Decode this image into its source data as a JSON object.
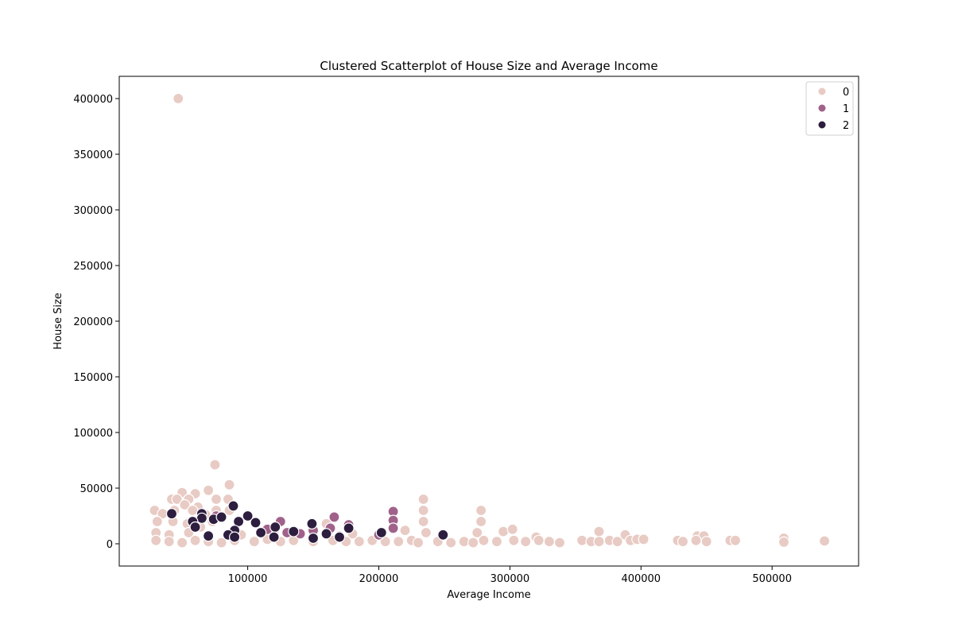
{
  "chart_data": {
    "type": "scatter",
    "title": "Clustered Scatterplot of House Size and Average Income",
    "xlabel": "Average Income",
    "ylabel": "House Size",
    "xlim": [
      2000,
      566000
    ],
    "ylim": [
      -20000,
      420000
    ],
    "xticks": [
      100000,
      200000,
      300000,
      400000,
      500000
    ],
    "yticks": [
      0,
      50000,
      100000,
      150000,
      200000,
      250000,
      300000,
      350000,
      400000
    ],
    "grid": false,
    "legend": {
      "placement": "top-right",
      "title": ""
    },
    "series": [
      {
        "name": "0",
        "color": "#e8cbc4",
        "points": [
          [
            47000,
            400000
          ],
          [
            75000,
            71000
          ],
          [
            86000,
            53000
          ],
          [
            70000,
            48000
          ],
          [
            50000,
            46000
          ],
          [
            60000,
            45000
          ],
          [
            42000,
            40000
          ],
          [
            46000,
            40000
          ],
          [
            55000,
            40000
          ],
          [
            76000,
            40000
          ],
          [
            85000,
            40000
          ],
          [
            234000,
            40000
          ],
          [
            52000,
            35000
          ],
          [
            62000,
            33000
          ],
          [
            29000,
            30000
          ],
          [
            44000,
            30000
          ],
          [
            58000,
            30000
          ],
          [
            76000,
            30000
          ],
          [
            86000,
            30000
          ],
          [
            234000,
            30000
          ],
          [
            278000,
            30000
          ],
          [
            35000,
            27000
          ],
          [
            68000,
            26000
          ],
          [
            31000,
            20000
          ],
          [
            43000,
            20000
          ],
          [
            54000,
            18000
          ],
          [
            64000,
            15000
          ],
          [
            73000,
            20000
          ],
          [
            160000,
            18000
          ],
          [
            234000,
            20000
          ],
          [
            278000,
            20000
          ],
          [
            30000,
            10000
          ],
          [
            40000,
            8000
          ],
          [
            55000,
            10000
          ],
          [
            95000,
            8000
          ],
          [
            120000,
            10000
          ],
          [
            150000,
            8000
          ],
          [
            180000,
            9000
          ],
          [
            220000,
            12000
          ],
          [
            236000,
            10000
          ],
          [
            275000,
            10000
          ],
          [
            295000,
            11000
          ],
          [
            302000,
            13000
          ],
          [
            320000,
            6000
          ],
          [
            368000,
            11000
          ],
          [
            388000,
            8000
          ],
          [
            443000,
            7000
          ],
          [
            448000,
            7000
          ],
          [
            30000,
            3000
          ],
          [
            40000,
            2000
          ],
          [
            50000,
            1000
          ],
          [
            60000,
            3000
          ],
          [
            70000,
            2000
          ],
          [
            80000,
            1000
          ],
          [
            90000,
            3000
          ],
          [
            105000,
            2000
          ],
          [
            115000,
            4000
          ],
          [
            125000,
            2000
          ],
          [
            135000,
            3000
          ],
          [
            150000,
            2000
          ],
          [
            165000,
            3000
          ],
          [
            175000,
            2000
          ],
          [
            185000,
            2000
          ],
          [
            195000,
            3000
          ],
          [
            205000,
            2000
          ],
          [
            215000,
            2000
          ],
          [
            225000,
            3000
          ],
          [
            230000,
            1000
          ],
          [
            245000,
            2000
          ],
          [
            255000,
            1000
          ],
          [
            265000,
            2000
          ],
          [
            272000,
            1000
          ],
          [
            280000,
            3000
          ],
          [
            290000,
            2000
          ],
          [
            303000,
            3000
          ],
          [
            312000,
            2000
          ],
          [
            322000,
            3000
          ],
          [
            330000,
            2000
          ],
          [
            338000,
            1000
          ],
          [
            355000,
            3000
          ],
          [
            362000,
            2000
          ],
          [
            368000,
            2000
          ],
          [
            376000,
            3000
          ],
          [
            382000,
            2000
          ],
          [
            392000,
            3000
          ],
          [
            397000,
            4000
          ],
          [
            402000,
            4000
          ],
          [
            428000,
            3000
          ],
          [
            432000,
            2000
          ],
          [
            442000,
            3000
          ],
          [
            450000,
            2000
          ],
          [
            468000,
            3000
          ],
          [
            472000,
            3000
          ],
          [
            509000,
            5000
          ],
          [
            509000,
            1500
          ],
          [
            540000,
            2500
          ]
        ]
      },
      {
        "name": "1",
        "color": "#a0628a",
        "points": [
          [
            211000,
            29000
          ],
          [
            166000,
            24000
          ],
          [
            76000,
            25000
          ],
          [
            211000,
            21000
          ],
          [
            125000,
            20000
          ],
          [
            177000,
            17000
          ],
          [
            211000,
            14000
          ],
          [
            163000,
            14000
          ],
          [
            150000,
            12000
          ],
          [
            115000,
            13000
          ],
          [
            200000,
            8000
          ],
          [
            140000,
            9000
          ],
          [
            170000,
            7000
          ],
          [
            130000,
            10000
          ]
        ]
      },
      {
        "name": "2",
        "color": "#2d1e3f",
        "points": [
          [
            89000,
            34000
          ],
          [
            65000,
            27000
          ],
          [
            100000,
            25000
          ],
          [
            42000,
            27000
          ],
          [
            74000,
            22000
          ],
          [
            80000,
            24000
          ],
          [
            93000,
            20000
          ],
          [
            106000,
            19000
          ],
          [
            65000,
            23000
          ],
          [
            149000,
            18000
          ],
          [
            121000,
            15000
          ],
          [
            177000,
            14000
          ],
          [
            58000,
            20000
          ],
          [
            60000,
            15000
          ],
          [
            90000,
            12000
          ],
          [
            110000,
            10000
          ],
          [
            135000,
            11000
          ],
          [
            160000,
            9000
          ],
          [
            202000,
            10000
          ],
          [
            249000,
            8000
          ],
          [
            85000,
            8000
          ],
          [
            70000,
            7000
          ],
          [
            90000,
            6000
          ],
          [
            120000,
            6000
          ],
          [
            150000,
            5000
          ],
          [
            170000,
            6000
          ]
        ]
      }
    ]
  }
}
